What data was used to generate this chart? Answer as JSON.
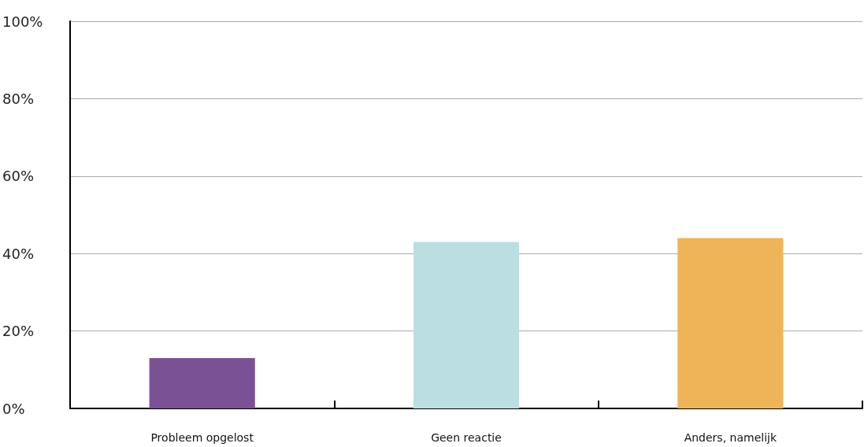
{
  "chart_data": {
    "type": "bar",
    "categories": [
      "Probleem opgelost",
      "Geen reactie",
      "Anders, namelijk"
    ],
    "values": [
      13,
      43,
      44
    ],
    "colors": [
      "#7b5196",
      "#badee1",
      "#efb457"
    ],
    "ylim": [
      0,
      100
    ],
    "yticks": [
      {
        "value": 0,
        "label": "0%"
      },
      {
        "value": 20,
        "label": "20%"
      },
      {
        "value": 40,
        "label": "40%"
      },
      {
        "value": 60,
        "label": "60%"
      },
      {
        "value": 80,
        "label": "80%"
      },
      {
        "value": 100,
        "label": "100%"
      }
    ],
    "grid": "y"
  }
}
